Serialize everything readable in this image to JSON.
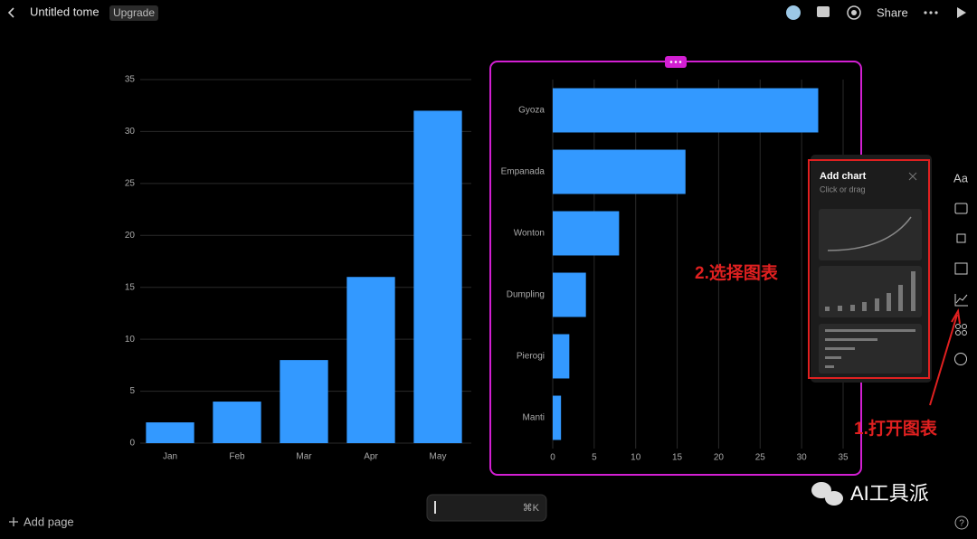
{
  "header": {
    "title": "Untitled tome",
    "badge": "Upgrade",
    "share": "Share"
  },
  "chart_data": [
    {
      "type": "bar",
      "categories": [
        "Jan",
        "Feb",
        "Mar",
        "Apr",
        "May"
      ],
      "values": [
        2,
        4,
        8,
        16,
        32
      ],
      "color": "#3399ff",
      "ylim": [
        0,
        35
      ],
      "yticks": [
        0,
        5,
        10,
        15,
        20,
        25,
        30,
        35
      ],
      "grid": true
    },
    {
      "type": "bar",
      "orientation": "horizontal",
      "categories": [
        "Gyoza",
        "Empanada",
        "Wonton",
        "Dumpling",
        "Pierogi",
        "Manti"
      ],
      "values": [
        32,
        16,
        8,
        4,
        2,
        1
      ],
      "color": "#3399ff",
      "xlim": [
        0,
        35
      ],
      "xticks": [
        0,
        5,
        10,
        15,
        20,
        25,
        30,
        35
      ],
      "grid": true
    }
  ],
  "panel": {
    "title": "Add chart",
    "subtitle": "Click or drag"
  },
  "sidebar": {
    "text_tool": "Aa"
  },
  "annotations": [
    "2.选择图表",
    "1.打开图表"
  ],
  "footer": {
    "add_page": "Add page",
    "shortcut": "⌘K",
    "watermark": "AI工具派",
    "help": "?"
  }
}
